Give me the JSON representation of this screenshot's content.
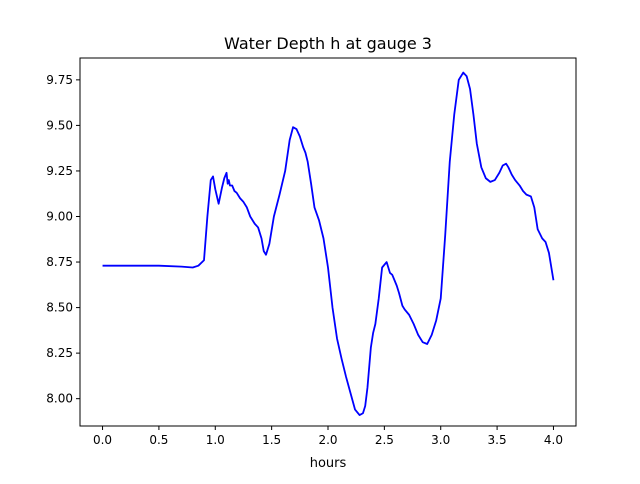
{
  "chart_data": {
    "type": "line",
    "title": "Water Depth h at gauge 3",
    "xlabel": "hours",
    "ylabel": "",
    "xlim": [
      -0.2,
      4.2
    ],
    "ylim": [
      7.85,
      9.87
    ],
    "x_ticks": [
      0.0,
      0.5,
      1.0,
      1.5,
      2.0,
      2.5,
      3.0,
      3.5,
      4.0
    ],
    "x_tick_labels": [
      "0.0",
      "0.5",
      "1.0",
      "1.5",
      "2.0",
      "2.5",
      "3.0",
      "3.5",
      "4.0"
    ],
    "y_ticks": [
      8.0,
      8.25,
      8.5,
      8.75,
      9.0,
      9.25,
      9.5,
      9.75
    ],
    "y_tick_labels": [
      "8.00",
      "8.25",
      "8.50",
      "8.75",
      "9.00",
      "9.25",
      "9.50",
      "9.75"
    ],
    "grid": false,
    "series": [
      {
        "color": "#0000ff",
        "x": [
          0.0,
          0.1,
          0.3,
          0.5,
          0.7,
          0.8,
          0.85,
          0.9,
          0.93,
          0.96,
          0.98,
          1.0,
          1.03,
          1.06,
          1.08,
          1.1,
          1.11,
          1.12,
          1.13,
          1.15,
          1.17,
          1.19,
          1.22,
          1.25,
          1.28,
          1.31,
          1.35,
          1.38,
          1.41,
          1.43,
          1.45,
          1.48,
          1.52,
          1.57,
          1.62,
          1.66,
          1.69,
          1.72,
          1.75,
          1.78,
          1.8,
          1.82,
          1.85,
          1.88,
          1.92,
          1.96,
          2.0,
          2.04,
          2.08,
          2.12,
          2.16,
          2.2,
          2.24,
          2.28,
          2.31,
          2.33,
          2.35,
          2.38,
          2.4,
          2.42,
          2.45,
          2.48,
          2.52,
          2.55,
          2.57,
          2.59,
          2.61,
          2.63,
          2.66,
          2.68,
          2.72,
          2.76,
          2.8,
          2.84,
          2.88,
          2.92,
          2.96,
          3.0,
          3.04,
          3.08,
          3.12,
          3.16,
          3.2,
          3.23,
          3.26,
          3.29,
          3.32,
          3.36,
          3.4,
          3.44,
          3.48,
          3.52,
          3.55,
          3.58,
          3.6,
          3.63,
          3.66,
          3.7,
          3.73,
          3.76,
          3.8,
          3.83,
          3.86,
          3.9,
          3.93,
          3.96,
          4.0
        ],
        "y": [
          8.73,
          8.73,
          8.73,
          8.73,
          8.725,
          8.72,
          8.73,
          8.76,
          9.0,
          9.2,
          9.22,
          9.15,
          9.07,
          9.16,
          9.21,
          9.24,
          9.18,
          9.2,
          9.17,
          9.17,
          9.14,
          9.13,
          9.1,
          9.08,
          9.05,
          9.0,
          8.96,
          8.94,
          8.88,
          8.81,
          8.79,
          8.85,
          9.0,
          9.12,
          9.25,
          9.42,
          9.49,
          9.48,
          9.44,
          9.38,
          9.35,
          9.3,
          9.18,
          9.05,
          8.98,
          8.88,
          8.72,
          8.5,
          8.33,
          8.22,
          8.12,
          8.03,
          7.94,
          7.91,
          7.92,
          7.96,
          8.06,
          8.28,
          8.36,
          8.41,
          8.55,
          8.72,
          8.75,
          8.69,
          8.68,
          8.65,
          8.62,
          8.58,
          8.51,
          8.49,
          8.46,
          8.41,
          8.35,
          8.31,
          8.3,
          8.35,
          8.43,
          8.55,
          8.9,
          9.3,
          9.56,
          9.75,
          9.79,
          9.77,
          9.7,
          9.56,
          9.4,
          9.27,
          9.21,
          9.19,
          9.2,
          9.24,
          9.28,
          9.29,
          9.27,
          9.23,
          9.2,
          9.17,
          9.14,
          9.12,
          9.11,
          9.05,
          8.93,
          8.88,
          8.86,
          8.8,
          8.65
        ]
      }
    ]
  }
}
